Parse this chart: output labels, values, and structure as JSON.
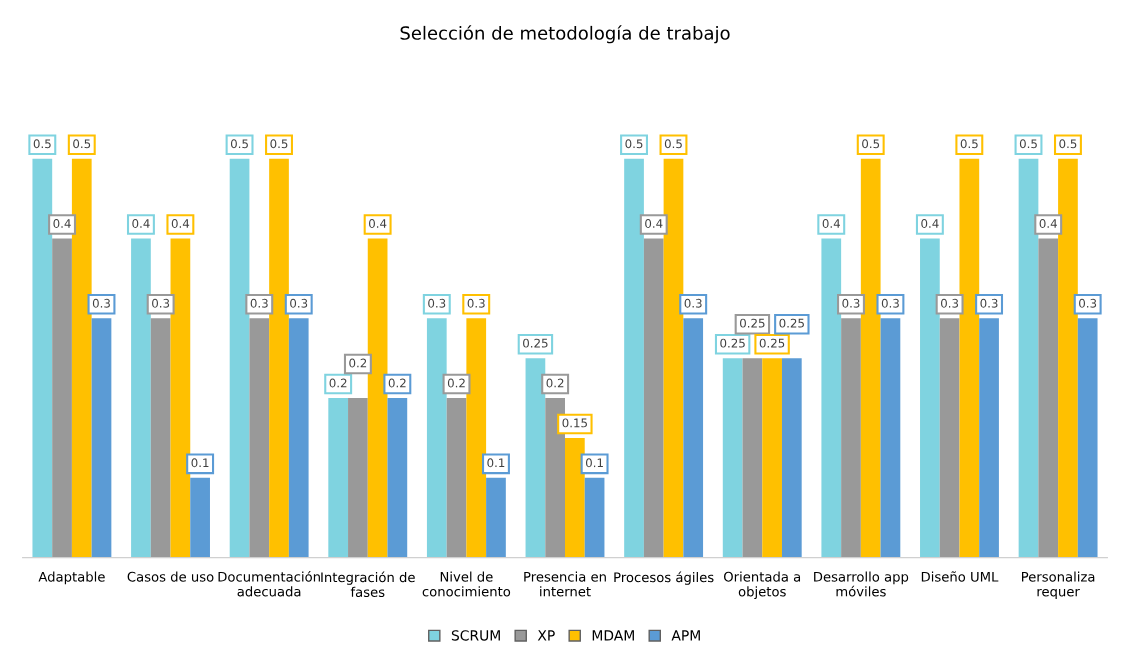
{
  "chart_data": {
    "type": "bar",
    "title": "Selección de metodología de trabajo",
    "categories": [
      "Adaptable",
      "Casos de uso",
      "Documentación\nadecuada",
      "Integración de\nfases",
      "Nivel de\nconocimiento",
      "Presencia en\ninternet",
      "Procesos ágiles",
      "Orientada a\nobjetos",
      "Desarrollo app\nmóviles",
      "Diseño UML",
      "Personaliza\nrequer"
    ],
    "series": [
      {
        "name": "SCRUM",
        "color": "#7fd3e0",
        "values": [
          0.5,
          0.4,
          0.5,
          0.2,
          0.3,
          0.25,
          0.5,
          0.25,
          0.4,
          0.4,
          0.5
        ]
      },
      {
        "name": "XP",
        "color": "#999999",
        "values": [
          0.4,
          0.3,
          0.3,
          0.2,
          0.2,
          0.2,
          0.4,
          0.25,
          0.3,
          0.3,
          0.4
        ]
      },
      {
        "name": "MDAM",
        "color": "#ffc000",
        "values": [
          0.5,
          0.4,
          0.5,
          0.4,
          0.3,
          0.15,
          0.5,
          0.25,
          0.5,
          0.5,
          0.5
        ]
      },
      {
        "name": "APM",
        "color": "#5b9bd5",
        "values": [
          0.3,
          0.1,
          0.3,
          0.2,
          0.1,
          0.1,
          0.3,
          0.25,
          0.3,
          0.3,
          0.3
        ]
      }
    ],
    "data_labels": true,
    "legend": "bottom",
    "grid": false
  }
}
